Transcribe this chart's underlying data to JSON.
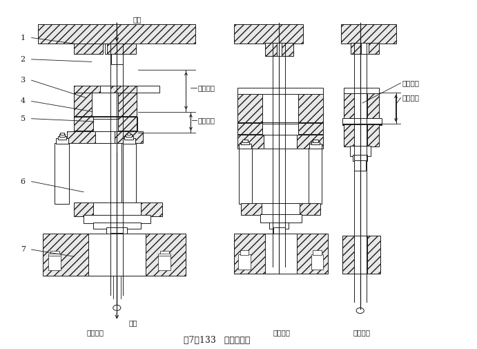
{
  "title": "图7－133   拉下式压制",
  "bg_color": "#ffffff",
  "line_color": "#1a1a1a",
  "labels": [
    "1",
    "2",
    "3",
    "4",
    "5",
    "6",
    "7"
  ],
  "annotations_top": {
    "上缸": [
      0.285,
      0.955
    ],
    "下缸": [
      0.285,
      0.085
    ]
  },
  "dim_labels": {
    "压制行程": [
      0.44,
      0.775
    ],
    "浮动行程": [
      0.44,
      0.695
    ]
  },
  "right_labels": {
    "粉末制件": [
      0.81,
      0.76
    ],
    "拉下行程": [
      0.81,
      0.71
    ]
  },
  "bottom_labels": {
    "装粉位置": [
      0.2,
      0.045
    ],
    "压制位置": [
      0.61,
      0.045
    ],
    "拉下位置": [
      0.76,
      0.045
    ]
  }
}
